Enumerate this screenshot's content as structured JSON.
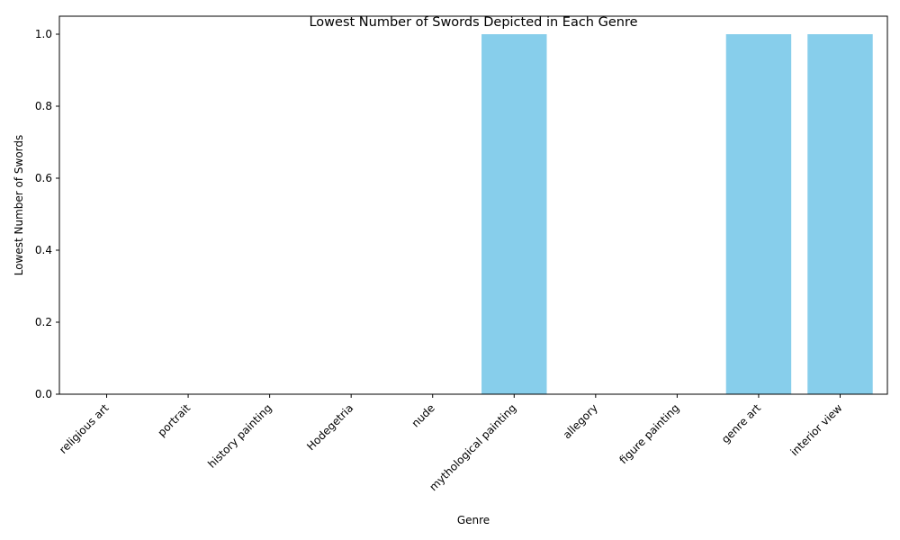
{
  "chart_data": {
    "type": "bar",
    "title": "Lowest Number of Swords Depicted in Each Genre",
    "xlabel": "Genre",
    "ylabel": "Lowest Number of Swords",
    "categories": [
      "religious art",
      "portrait",
      "history painting",
      "Hodegetria",
      "nude",
      "mythological painting",
      "allegory",
      "figure painting",
      "genre art",
      "interior view"
    ],
    "values": [
      0,
      0,
      0,
      0,
      0,
      1,
      0,
      0,
      1,
      1
    ],
    "ylim": [
      0,
      1.05
    ],
    "yticks": [
      0.0,
      0.2,
      0.4,
      0.6,
      0.8,
      1.0
    ],
    "bar_color": "#87ceeb",
    "grid": false,
    "legend": "none"
  }
}
